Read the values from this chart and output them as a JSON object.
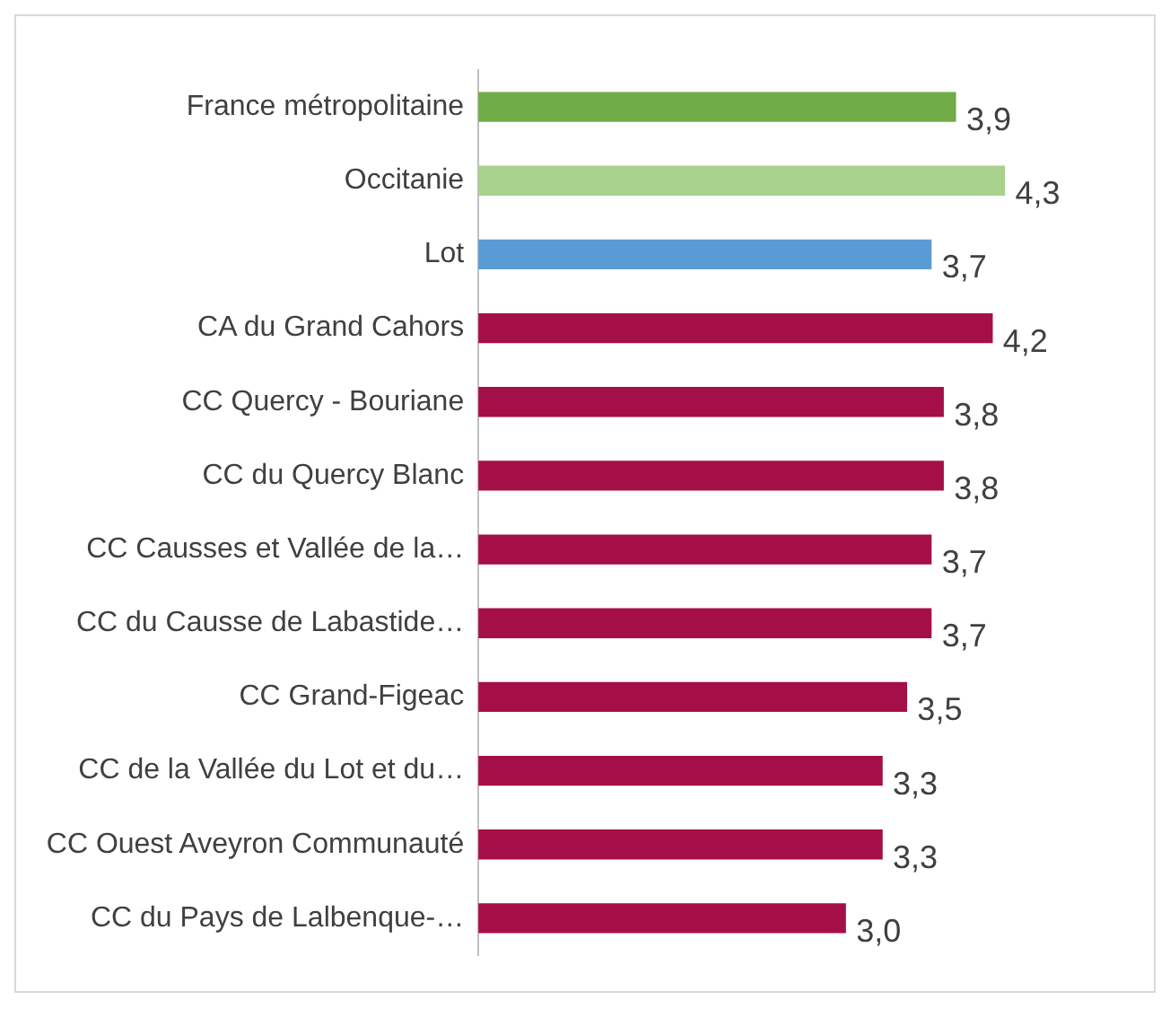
{
  "chart_data": {
    "type": "bar",
    "orientation": "horizontal",
    "categories": [
      "France métropolitaine",
      "Occitanie",
      "Lot",
      "CA du Grand Cahors",
      "CC Quercy - Bouriane",
      "CC du Quercy Blanc",
      "CC Causses et Vallée de la…",
      "CC du Causse de Labastide…",
      "CC Grand-Figeac",
      "CC de la Vallée du Lot et du…",
      "CC Ouest Aveyron Communauté",
      "CC du Pays de Lalbenque-…"
    ],
    "values": [
      3.9,
      4.3,
      3.7,
      4.2,
      3.8,
      3.8,
      3.7,
      3.7,
      3.5,
      3.3,
      3.3,
      3.0
    ],
    "colors": [
      "#70ad47",
      "#a9d18e",
      "#5b9bd5",
      "#a50f47",
      "#a50f47",
      "#a50f47",
      "#a50f47",
      "#a50f47",
      "#a50f47",
      "#a50f47",
      "#a50f47",
      "#a50f47"
    ],
    "value_labels": [
      "3,9",
      "4,3",
      "3,7",
      "4,2",
      "3,8",
      "3,8",
      "3,7",
      "3,7",
      "3,5",
      "3,3",
      "3,3",
      "3,0"
    ]
  }
}
